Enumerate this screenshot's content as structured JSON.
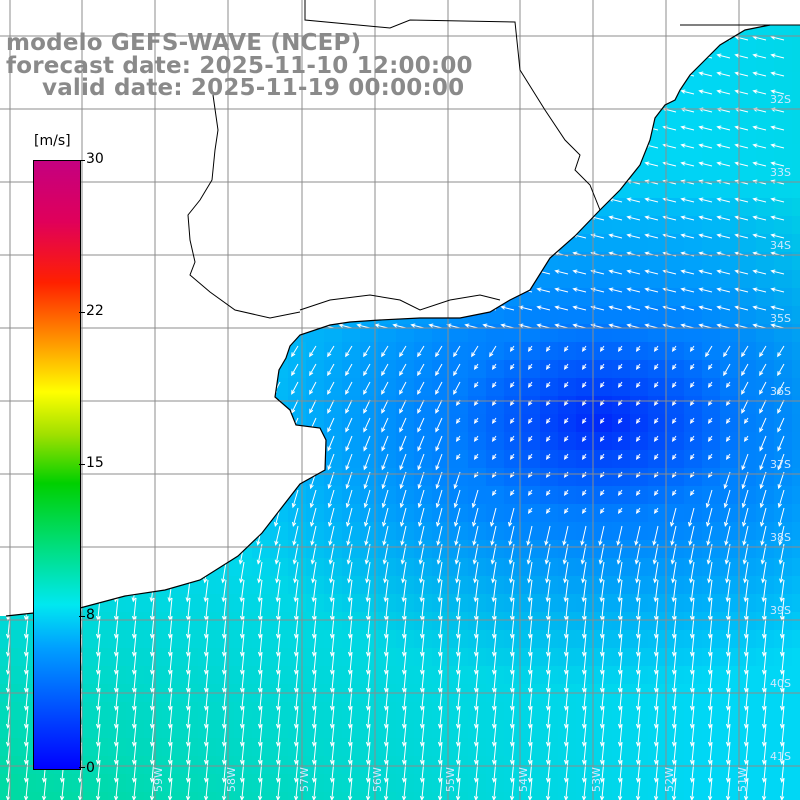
{
  "title": {
    "line1": "modelo GEFS-WAVE (NCEP)",
    "line2": "forecast date: 2025-11-10 12:00:00",
    "line3": "valid date: 2025-11-19 00:00:00"
  },
  "colorbar": {
    "unit": "[m/s]",
    "ticks": [
      {
        "label": "30",
        "value": 30
      },
      {
        "label": "22",
        "value": 22
      },
      {
        "label": "15",
        "value": 15
      },
      {
        "label": "8",
        "value": 8
      },
      {
        "label": "0",
        "value": 0
      }
    ],
    "min": 0,
    "max": 30
  },
  "map": {
    "lat_labels": [
      "32S",
      "33S",
      "34S",
      "35S",
      "36S",
      "37S",
      "38S",
      "39S",
      "40S",
      "41S"
    ],
    "lon_labels": [
      "59W",
      "58W",
      "57W",
      "56W",
      "55W",
      "54W",
      "53W",
      "52W",
      "51W"
    ],
    "field": "wind speed",
    "colors": {
      "land": "#ffffff",
      "grid": "#8c8c8c",
      "coast": "#000000",
      "arrows": "#ffffff"
    }
  }
}
